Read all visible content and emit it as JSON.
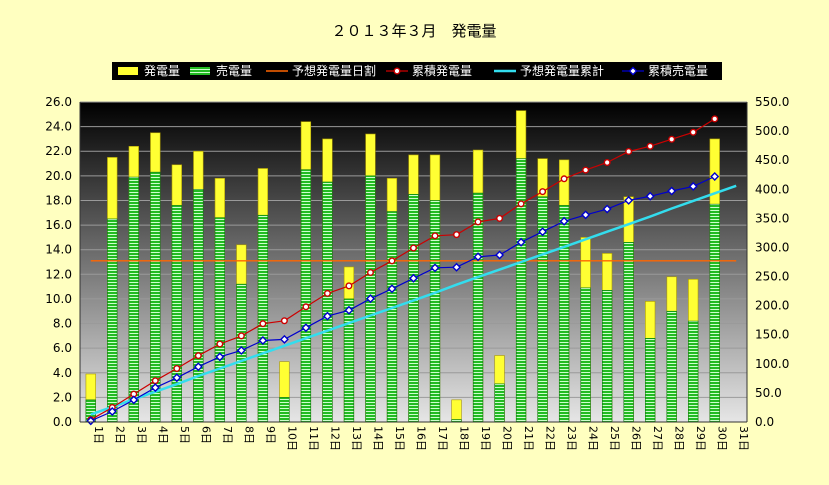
{
  "chart_data": {
    "type": "bar",
    "title": "２０１３年３月　発電量",
    "categories": [
      "1日",
      "2日",
      "3日",
      "4日",
      "5日",
      "6日",
      "7日",
      "8日",
      "9日",
      "10日",
      "11日",
      "12日",
      "13日",
      "14日",
      "15日",
      "16日",
      "17日",
      "18日",
      "19日",
      "20日",
      "21日",
      "22日",
      "23日",
      "24日",
      "25日",
      "26日",
      "27日",
      "28日",
      "29日",
      "30日",
      "31日"
    ],
    "series": [
      {
        "name": "発電量",
        "kind": "bar",
        "axis": "left",
        "color": "#ffff33",
        "values": [
          3.9,
          21.5,
          22.4,
          23.5,
          20.9,
          22.0,
          19.8,
          14.4,
          20.6,
          4.9,
          24.4,
          23.0,
          12.6,
          23.4,
          19.8,
          21.7,
          21.7,
          1.8,
          22.1,
          5.4,
          25.3,
          21.4,
          21.3,
          15.0,
          13.7,
          18.3,
          9.8,
          11.8,
          11.6,
          23.0,
          null
        ]
      },
      {
        "name": "売電量",
        "kind": "bar",
        "axis": "left",
        "color": "#33cc33",
        "values": [
          1.8,
          16.5,
          19.9,
          20.3,
          17.6,
          18.9,
          16.6,
          11.2,
          16.8,
          2.0,
          20.5,
          19.5,
          10.0,
          20.0,
          17.1,
          18.5,
          18.0,
          0.2,
          18.6,
          3.1,
          21.4,
          18.3,
          17.6,
          10.9,
          10.7,
          14.6,
          6.8,
          9.0,
          8.2,
          17.7,
          null
        ]
      },
      {
        "name": "予想発電量日割",
        "kind": "line",
        "axis": "left",
        "color": "#ff6600",
        "values": [
          13.1,
          13.1,
          13.1,
          13.1,
          13.1,
          13.1,
          13.1,
          13.1,
          13.1,
          13.1,
          13.1,
          13.1,
          13.1,
          13.1,
          13.1,
          13.1,
          13.1,
          13.1,
          13.1,
          13.1,
          13.1,
          13.1,
          13.1,
          13.1,
          13.1,
          13.1,
          13.1,
          13.1,
          13.1,
          13.1,
          13.1
        ]
      },
      {
        "name": "累積発電量",
        "kind": "line",
        "axis": "right",
        "color": "#cc0000",
        "values": [
          4,
          25,
          48,
          71,
          92,
          114,
          134,
          148,
          169,
          174,
          198,
          221,
          234,
          257,
          277,
          299,
          320,
          322,
          344,
          350,
          375,
          396,
          418,
          433,
          446,
          465,
          474,
          486,
          498,
          521,
          null
        ]
      },
      {
        "name": "予想発電量累計",
        "kind": "line",
        "axis": "right",
        "color": "#33ddee",
        "values": [
          13,
          26,
          39,
          52,
          65,
          79,
          92,
          105,
          118,
          131,
          144,
          157,
          170,
          183,
          196,
          209,
          222,
          236,
          249,
          262,
          275,
          288,
          301,
          314,
          327,
          340,
          353,
          367,
          380,
          393,
          406
        ]
      },
      {
        "name": "累積売電量",
        "kind": "line",
        "axis": "right",
        "color": "#0000cc",
        "values": [
          2,
          18,
          38,
          59,
          76,
          95,
          112,
          123,
          140,
          142,
          162,
          182,
          192,
          212,
          229,
          247,
          265,
          266,
          284,
          287,
          309,
          327,
          345,
          356,
          366,
          381,
          388,
          397,
          405,
          422,
          null
        ]
      }
    ],
    "y_left": {
      "min": 0,
      "max": 26,
      "step": 2,
      "decimals": 1
    },
    "y_right": {
      "min": 0,
      "max": 550,
      "step": 50,
      "decimals": 1
    },
    "legend_position": "top",
    "grid": true
  }
}
